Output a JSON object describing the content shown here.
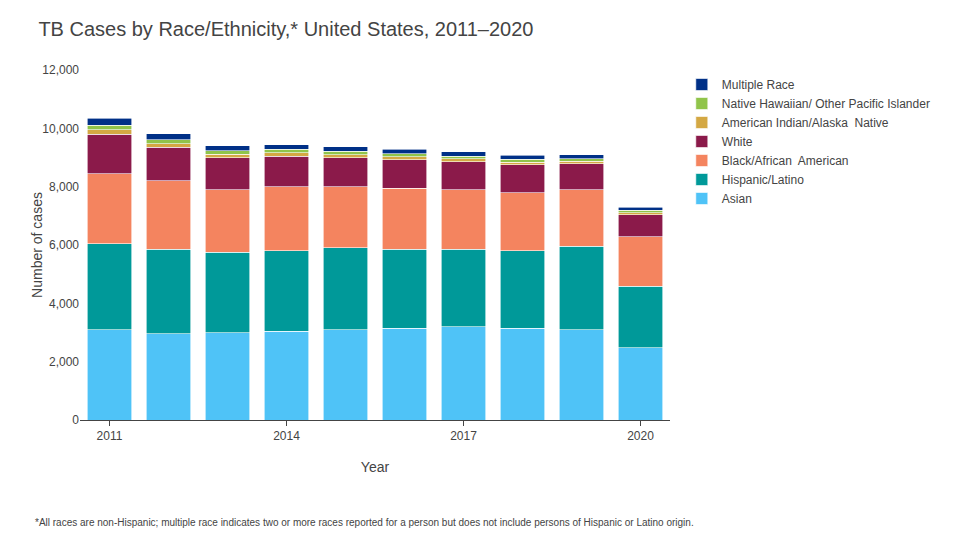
{
  "chart_data": {
    "type": "bar",
    "stacked": true,
    "title": "TB Cases by Race/Ethnicity,* United States, 2011–2020",
    "xlabel": "Year",
    "ylabel": "Number of cases",
    "categories": [
      "2011",
      null,
      null,
      "2014",
      null,
      null,
      "2017",
      null,
      null,
      "2020"
    ],
    "series": [
      {
        "name": "Asian",
        "color": "#4fc3f7",
        "values": [
          3100,
          2950,
          3000,
          3050,
          3100,
          3150,
          3200,
          3150,
          3100,
          2480
        ]
      },
      {
        "name": "Hispanic/Latino",
        "color": "#009999",
        "values": [
          2950,
          2900,
          2750,
          2750,
          2800,
          2700,
          2650,
          2650,
          2850,
          2100
        ]
      },
      {
        "name": "Black/African  American",
        "color": "#f4845f",
        "values": [
          2400,
          2350,
          2150,
          2200,
          2100,
          2100,
          2050,
          2000,
          1950,
          1700
        ]
      },
      {
        "name": "White",
        "color": "#8B1A4A",
        "values": [
          1350,
          1150,
          1100,
          1050,
          1000,
          980,
          960,
          950,
          880,
          750
        ]
      },
      {
        "name": "American Indian/Alaska  Native",
        "color": "#d4a843",
        "values": [
          150,
          130,
          110,
          110,
          100,
          95,
          90,
          90,
          85,
          80
        ]
      },
      {
        "name": "Native Hawaiian/ Other Pacific Islander",
        "color": "#90c44a",
        "values": [
          150,
          130,
          120,
          120,
          110,
          100,
          100,
          95,
          90,
          90
        ]
      },
      {
        "name": "Multiple Race",
        "color": "#003087",
        "values": [
          250,
          200,
          170,
          160,
          155,
          155,
          150,
          145,
          135,
          100
        ]
      }
    ],
    "ylim": [
      0,
      12000
    ],
    "yticks": [
      0,
      {
        "value": 2000,
        "label": "2,000"
      },
      {
        "value": 4000,
        "label": "4,000"
      },
      {
        "value": 6000,
        "label": "6,000"
      },
      {
        "value": 8000,
        "label": "8,000"
      },
      {
        "value": 10000,
        "label": "10,000"
      },
      {
        "value": 12000,
        "label": "12,000"
      }
    ],
    "grid": false,
    "legend": "right",
    "annotations": [
      "*All races are non-Hispanic; multiple race indicates two or more races reported for a person but does not include persons of Hispanic or Latino origin."
    ]
  }
}
